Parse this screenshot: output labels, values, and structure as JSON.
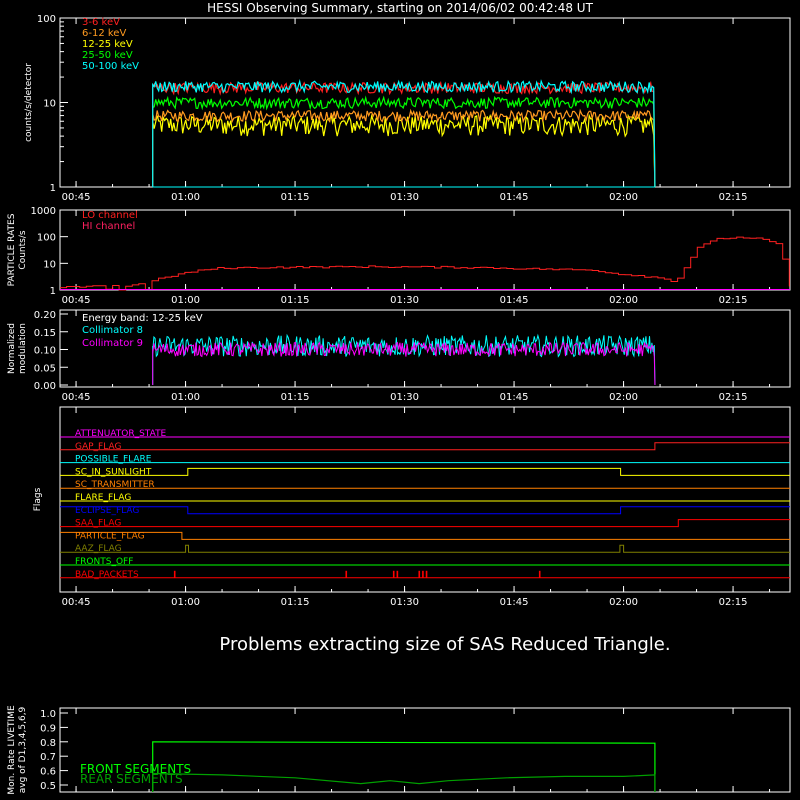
{
  "title": "HESSI Observing Summary, starting on 2014/06/02 00:42:48 UT",
  "time_ticks": [
    "00:45",
    "01:00",
    "01:15",
    "01:30",
    "01:45",
    "02:00",
    "02:15"
  ],
  "time_tick_minutes": [
    45,
    60,
    75,
    90,
    105,
    120,
    135
  ],
  "message": "Problems extracting size of SAS Reduced Triangle.",
  "chart_data": [
    {
      "type": "line",
      "ylabel": "counts/s/detector",
      "yscale": "log",
      "ylim": [
        1,
        100
      ],
      "ytick_labels": [
        "1",
        "10",
        "100"
      ],
      "xlim_minutes": [
        42.8,
        142.8
      ],
      "series": [
        {
          "name": "3-6 keV",
          "color": "#ff2020",
          "t_start": 55.5,
          "t_end": 124.3,
          "level": 15
        },
        {
          "name": "6-12 keV",
          "color": "#ff9a20",
          "t_start": 55.5,
          "t_end": 124.3,
          "level": 7
        },
        {
          "name": "12-25 keV",
          "color": "#ffff00",
          "t_start": 55.5,
          "t_end": 124.3,
          "level": 5.5
        },
        {
          "name": "25-50 keV",
          "color": "#00ff00",
          "t_start": 55.5,
          "t_end": 124.3,
          "level": 10
        },
        {
          "name": "50-100 keV",
          "color": "#00ffff",
          "t_start": 55.5,
          "t_end": 124.3,
          "level": 15.5
        }
      ]
    },
    {
      "type": "line",
      "ylabel_lines": [
        "PARTICLE RATES",
        "Counts/s"
      ],
      "yscale": "log",
      "ylim": [
        1,
        1000
      ],
      "ytick_labels": [
        "1",
        "10",
        "100",
        "1000"
      ],
      "series": [
        {
          "name": "LO channel",
          "color": "#ff2020",
          "points": [
            [
              42.8,
              1.3
            ],
            [
              52,
              1.4
            ],
            [
              56,
              2.5
            ],
            [
              60,
              4.5
            ],
            [
              64,
              6.5
            ],
            [
              70,
              7
            ],
            [
              85,
              7.5
            ],
            [
              100,
              7
            ],
            [
              110,
              6
            ],
            [
              116,
              5.5
            ],
            [
              119,
              4
            ],
            [
              122,
              3.5
            ],
            [
              124,
              3
            ],
            [
              126,
              2.5
            ],
            [
              127,
              2
            ],
            [
              128,
              5
            ],
            [
              130,
              40
            ],
            [
              133,
              85
            ],
            [
              136,
              95
            ],
            [
              139,
              80
            ],
            [
              141,
              50
            ],
            [
              142,
              10
            ],
            [
              142.8,
              1
            ]
          ]
        },
        {
          "name": "HI channel",
          "color": "#ff00ff",
          "points": [
            [
              42.8,
              1
            ],
            [
              142.8,
              1
            ]
          ]
        }
      ]
    },
    {
      "type": "line",
      "ylabel_lines": [
        "Normalized",
        "modulation"
      ],
      "ylim": [
        0,
        0.2
      ],
      "ytick_labels": [
        "0.00",
        "0.05",
        "0.10",
        "0.15",
        "0.20"
      ],
      "annotation": "Energy band: 12-25 keV",
      "series": [
        {
          "name": "Collimator 8",
          "color": "#00ffff",
          "t_start": 55.5,
          "t_end": 124.3,
          "level": 0.11
        },
        {
          "name": "Collimator 9",
          "color": "#ff00ff",
          "t_start": 55.5,
          "t_end": 124.3,
          "level": 0.1
        }
      ]
    },
    {
      "type": "line",
      "ylabel": "Flags",
      "series": [
        {
          "name": "ATTENUATOR_STATE",
          "color": "#ff00ff",
          "steps": []
        },
        {
          "name": "GAP_FLAG",
          "color": "#ff2020",
          "steps": [
            [
              124.3,
              1
            ]
          ]
        },
        {
          "name": "POSSIBLE_FLARE",
          "color": "#00ffff",
          "steps": []
        },
        {
          "name": "SC_IN_SUNLIGHT",
          "color": "#ffff00",
          "steps": [
            [
              60.3,
              1
            ],
            [
              119.6,
              0
            ]
          ]
        },
        {
          "name": "SC_TRANSMITTER",
          "color": "#ff8000",
          "steps": []
        },
        {
          "name": "FLARE_FLAG",
          "color": "#ffff00",
          "steps": []
        },
        {
          "name": "ECLIPSE_FLAG",
          "color": "#0000ff",
          "steps": [
            [
              60.3,
              0
            ],
            [
              119.6,
              1
            ]
          ]
        },
        {
          "name": "SAA_FLAG",
          "color": "#ff0000",
          "steps": [
            [
              127.5,
              1
            ]
          ]
        },
        {
          "name": "PARTICLE_FLAG",
          "color": "#ff8000",
          "steps": [
            [
              59.5,
              0
            ]
          ]
        },
        {
          "name": "AAZ_FLAG",
          "color": "#808000",
          "steps": [
            [
              60,
              1
            ],
            [
              60.4,
              0
            ],
            [
              119.5,
              1
            ],
            [
              120,
              0
            ]
          ]
        },
        {
          "name": "FRONTS_OFF",
          "color": "#00ff00",
          "steps": []
        },
        {
          "name": "BAD_PACKETS",
          "color": "#ff0000",
          "spikes": [
            58.5,
            82,
            88.5,
            89,
            92,
            92.5,
            93,
            108.5
          ]
        }
      ]
    },
    {
      "type": "line",
      "ylabel_lines": [
        "Mon. Rate LIVETIME",
        "avg of D1,3,4,5,6,9"
      ],
      "ylim": [
        0.5,
        1.0
      ],
      "ytick_labels": [
        "0.5",
        "0.6",
        "0.7",
        "0.8",
        "0.9",
        "1.0"
      ],
      "series": [
        {
          "name": "FRONT SEGMENTS",
          "color": "#00ff00",
          "points": [
            [
              55.5,
              0.8
            ],
            [
              124.3,
              0.79
            ]
          ]
        },
        {
          "name": "REAR SEGMENTS",
          "color": "#00a000",
          "points": [
            [
              55.5,
              0.58
            ],
            [
              65,
              0.57
            ],
            [
              75,
              0.55
            ],
            [
              84,
              0.51
            ],
            [
              88,
              0.53
            ],
            [
              92,
              0.51
            ],
            [
              96,
              0.53
            ],
            [
              104,
              0.55
            ],
            [
              112,
              0.56
            ],
            [
              120,
              0.56
            ],
            [
              124.3,
              0.57
            ]
          ]
        }
      ]
    }
  ]
}
